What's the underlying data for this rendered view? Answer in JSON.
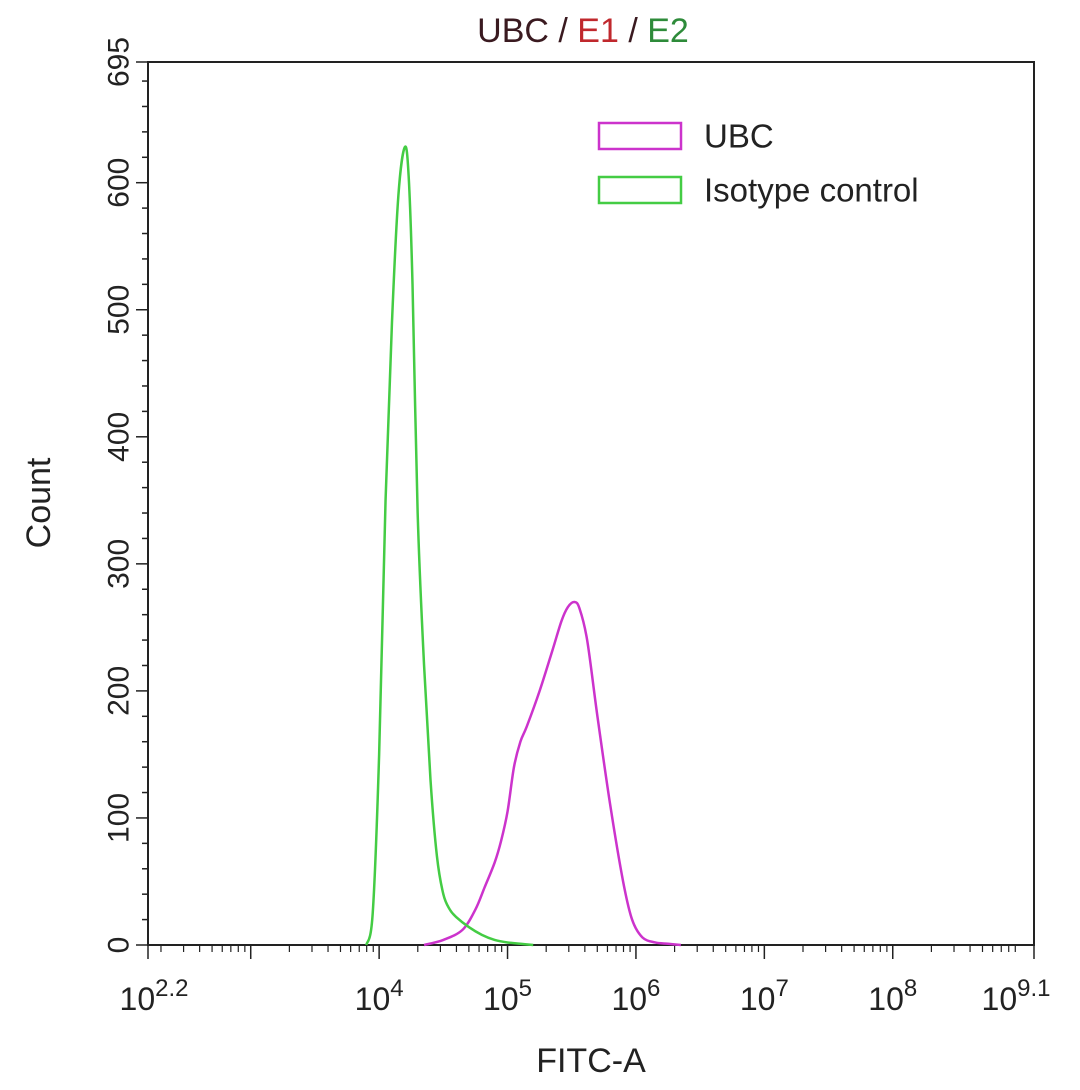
{
  "title": {
    "parts": [
      {
        "text": "UBC",
        "color": "#3a1a20"
      },
      {
        "text": " / ",
        "color": "#3a1a20"
      },
      {
        "text": "E1",
        "color": "#c0282d"
      },
      {
        "text": " / ",
        "color": "#3a1a20"
      },
      {
        "text": "E2",
        "color": "#2e8b3a"
      }
    ]
  },
  "chart_data": {
    "type": "line",
    "xlabel": "FITC-A",
    "ylabel": "Count",
    "xscale": "log10",
    "xlim_log10": [
      2.2,
      9.1
    ],
    "ylim": [
      0,
      695
    ],
    "y_ticks": [
      0,
      100,
      200,
      300,
      400,
      500,
      600,
      695
    ],
    "x_ticks": [
      {
        "base": "10",
        "exp": "2.2",
        "log": 2.2
      },
      {
        "base": "10",
        "exp": "4",
        "log": 4
      },
      {
        "base": "10",
        "exp": "5",
        "log": 5
      },
      {
        "base": "10",
        "exp": "6",
        "log": 6
      },
      {
        "base": "10",
        "exp": "7",
        "log": 7
      },
      {
        "base": "10",
        "exp": "8",
        "log": 8
      },
      {
        "base": "10",
        "exp": "9.1",
        "log": 9.1
      }
    ],
    "extra_major_tick_log": 3,
    "legend_position": "top-right",
    "series": [
      {
        "name": "UBC",
        "color": "#cc33cc",
        "x_log10": [
          4.35,
          4.5,
          4.65,
          4.75,
          4.82,
          4.9,
          4.95,
          5.0,
          5.05,
          5.1,
          5.15,
          5.25,
          5.35,
          5.42,
          5.47,
          5.52,
          5.56,
          5.62,
          5.7,
          5.8,
          5.9,
          5.97,
          6.05,
          6.15,
          6.25,
          6.35
        ],
        "y": [
          0,
          4,
          12,
          28,
          45,
          65,
          82,
          105,
          140,
          160,
          172,
          200,
          232,
          255,
          266,
          270,
          265,
          240,
          180,
          110,
          50,
          20,
          6,
          2,
          1,
          0
        ]
      },
      {
        "name": "Isotype control",
        "color": "#44cc44",
        "x_log10": [
          3.9,
          3.95,
          4.0,
          4.05,
          4.1,
          4.15,
          4.2,
          4.23,
          4.26,
          4.3,
          4.35,
          4.4,
          4.45,
          4.5,
          4.55,
          4.6,
          4.7,
          4.8,
          4.9,
          5.0,
          5.1,
          5.2
        ],
        "y": [
          0,
          25,
          150,
          350,
          490,
          590,
          628,
          605,
          520,
          340,
          220,
          130,
          70,
          40,
          28,
          22,
          14,
          8,
          4,
          2,
          1,
          0
        ]
      }
    ]
  }
}
